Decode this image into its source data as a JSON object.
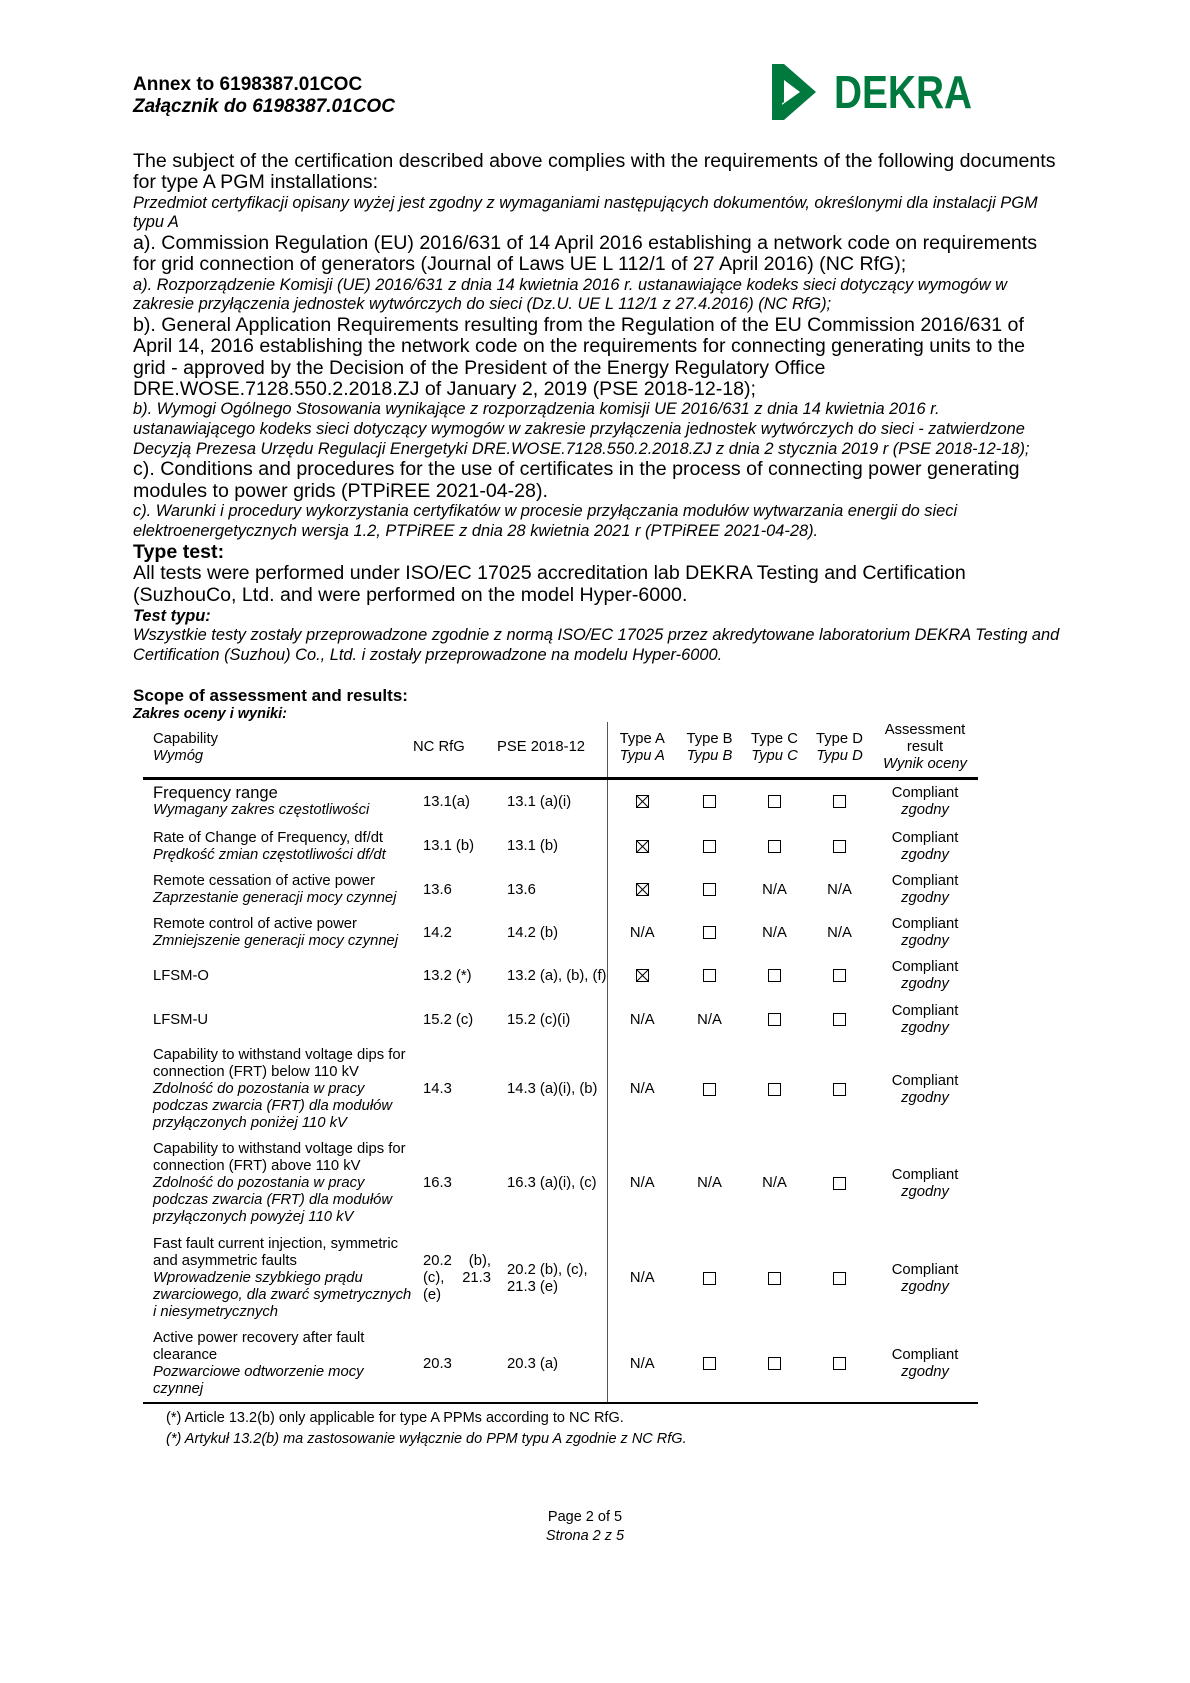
{
  "header": {
    "annex_en": "Annex to 6198387.01COC",
    "annex_pl": "Załącznik do 6198387.01COC",
    "logo_text": "DEKRA",
    "logo_color": "#00793F"
  },
  "body": {
    "intro_en": "The subject of the certification described above complies with the requirements of the following documents for type A PGM installations:",
    "intro_pl": "Przedmiot certyfikacji opisany wyżej jest zgodny z wymaganiami następujących dokumentów, określonymi dla instalacji PGM typu A",
    "a_en": "a). Commission Regulation (EU) 2016/631 of 14 April 2016 establishing a network code on requirements for grid connection of generators (Journal of Laws UE L 112/1 of 27 April 2016) (NC RfG);",
    "a_pl": "a). Rozporządzenie Komisji (UE) 2016/631 z dnia 14 kwietnia 2016 r. ustanawiające kodeks sieci dotyczący wymogów w zakresie przyłączenia jednostek wytwórczych do sieci (Dz.U. UE L 112/1 z 27.4.2016) (NC RfG);",
    "b_en": "b). General Application Requirements resulting from the Regulation of the EU Commission 2016/631 of April 14, 2016 establishing the network code on the requirements for connecting generating units to the grid - approved by the Decision of the President of the Energy Regulatory Office DRE.WOSE.7128.550.2.2018.ZJ of January 2, 2019 (PSE 2018-12-18);",
    "b_pl": "b). Wymogi Ogólnego Stosowania wynikające z rozporządzenia komisji UE 2016/631 z dnia 14 kwietnia 2016 r. ustanawiającego kodeks sieci dotyczący wymogów w zakresie przyłączenia jednostek wytwórczych do sieci - zatwierdzone Decyzją Prezesa Urzędu Regulacji Energetyki DRE.WOSE.7128.550.2.2018.ZJ z dnia 2 stycznia 2019 r (PSE 2018-12-18);",
    "c_en": "c). Conditions and procedures for the use of certificates in the process of connecting power generating modules to power grids (PTPiREE 2021-04-28).",
    "c_pl": "c). Warunki i procedury wykorzystania certyfikatów w procesie przyłączania modułów wytwarzania energii do sieci elektroenergetycznych wersja 1.2, PTPiREE z dnia 28 kwietnia 2021 r (PTPiREE 2021-04-28).",
    "type_test_en": "Type test:",
    "type_test_text_en": "All tests were performed under ISO/EC 17025 accreditation lab DEKRA Testing and Certification (SuzhouCo, Ltd. and were performed on the model Hyper-6000.",
    "type_test_pl": "Test typu:",
    "type_test_text_pl": "Wszystkie testy zostały przeprowadzone zgodnie z normą ISO/EC 17025 przez akredytowane laboratorium DEKRA Testing and Certification (Suzhou) Co., Ltd. i zostały przeprowadzone na modelu Hyper-6000."
  },
  "scope": {
    "title_en": "Scope of assessment and results:",
    "title_pl": "Zakres oceny i wyniki:"
  },
  "table": {
    "headers": {
      "capability_en": "Capability",
      "capability_pl": "Wymóg",
      "nc_rfg": "NC RfG",
      "pse": "PSE 2018-12",
      "types": [
        {
          "en": "Type A",
          "pl": "Typu A"
        },
        {
          "en": "Type B",
          "pl": "Typu B"
        },
        {
          "en": "Type C",
          "pl": "Typu C"
        },
        {
          "en": "Type D",
          "pl": "Typu D"
        }
      ],
      "result_en1": "Assessment",
      "result_en2": "result",
      "result_pl": "Wynik oceny"
    },
    "rows": [
      {
        "en": "Frequency range",
        "pl": "Wymagany zakres częstotliwości",
        "nc": "13.1(a)",
        "pse": "13.1 (a)(i)",
        "types": [
          "checked",
          "unchecked",
          "unchecked",
          "unchecked"
        ],
        "res_en": "Compliant",
        "res_pl": "zgodny"
      },
      {
        "en": "Rate of Change of Frequency, df/dt",
        "pl": "Prędkość zmian częstotliwości df/dt",
        "nc": "13.1 (b)",
        "pse": "13.1 (b)",
        "types": [
          "checked",
          "unchecked",
          "unchecked",
          "unchecked"
        ],
        "res_en": "Compliant",
        "res_pl": "zgodny"
      },
      {
        "en": "Remote cessation of active power",
        "pl": "Zaprzestanie generacji mocy czynnej",
        "nc": "13.6",
        "pse": "13.6",
        "types": [
          "checked",
          "unchecked",
          "N/A",
          "N/A"
        ],
        "res_en": "Compliant",
        "res_pl": "zgodny"
      },
      {
        "en": "Remote control of active power",
        "pl": "Zmniejszenie generacji mocy czynnej",
        "nc": "14.2",
        "pse": "14.2 (b)",
        "types": [
          "N/A",
          "unchecked",
          "N/A",
          "N/A"
        ],
        "res_en": "Compliant",
        "res_pl": "zgodny"
      },
      {
        "en": "LFSM-O",
        "pl": "",
        "nc": "13.2 (*)",
        "pse": "13.2 (a), (b), (f)",
        "types": [
          "checked",
          "unchecked",
          "unchecked",
          "unchecked"
        ],
        "res_en": "Compliant",
        "res_pl": "zgodny"
      },
      {
        "en": "LFSM-U",
        "pl": "",
        "nc": "15.2 (c)",
        "pse": "15.2 (c)(i)",
        "types": [
          "N/A",
          "N/A",
          "unchecked",
          "unchecked"
        ],
        "res_en": "Compliant",
        "res_pl": "zgodny"
      },
      {
        "en": "Capability to withstand voltage dips for connection (FRT) below 110 kV",
        "pl": "Zdolność do pozostania w pracy podczas zwarcia (FRT) dla modułów przyłączonych poniżej 110 kV",
        "nc": "14.3",
        "pse": "14.3 (a)(i), (b)",
        "types": [
          "N/A",
          "unchecked",
          "unchecked",
          "unchecked"
        ],
        "res_en": "Compliant",
        "res_pl": "zgodny"
      },
      {
        "en": "Capability to withstand voltage dips for connection (FRT) above 110 kV",
        "pl": "Zdolność do pozostania w pracy podczas zwarcia (FRT) dla modułów przyłączonych powyżej 110 kV",
        "nc": "16.3",
        "pse": "16.3 (a)(i), (c)",
        "types": [
          "N/A",
          "N/A",
          "N/A",
          "unchecked"
        ],
        "res_en": "Compliant",
        "res_pl": "zgodny"
      },
      {
        "en": "Fast fault current injection, symmetric and asymmetric faults",
        "pl": "Wprowadzenie szybkiego prądu zwarciowego, dla zwarć symetrycznych i niesymetrycznych",
        "nc": "20.2 (b), (c), 21.3 (e)",
        "pse": "20.2 (b), (c), 21.3 (e)",
        "types": [
          "N/A",
          "unchecked",
          "unchecked",
          "unchecked"
        ],
        "res_en": "Compliant",
        "res_pl": "zgodny"
      },
      {
        "en": "Active power recovery after fault clearance",
        "pl": "Pozwarciowe odtworzenie mocy czynnej",
        "nc": "20.3",
        "pse": "20.3 (a)",
        "types": [
          "N/A",
          "unchecked",
          "unchecked",
          "unchecked"
        ],
        "res_en": "Compliant",
        "res_pl": "zgodny"
      }
    ]
  },
  "footnote": {
    "en": "(*) Article 13.2(b) only applicable for type A PPMs according to NC RfG.",
    "pl": "(*) Artykuł 13.2(b) ma zastosowanie wyłącznie do PPM typu A zgodnie z NC RfG."
  },
  "page": {
    "en": "Page 2 of 5",
    "pl": "Strona 2 z 5"
  }
}
